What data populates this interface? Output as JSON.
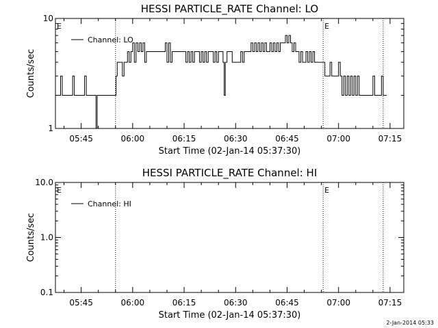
{
  "chart_data": [
    {
      "type": "line",
      "title": "HESSI PARTICLE_RATE Channel: LO",
      "xlabel": "Start Time (02-Jan-14 05:37:30)",
      "ylabel": "Counts/sec",
      "yscale": "log",
      "xlim": [
        "05:37:30",
        "07:19:00"
      ],
      "ylim": [
        1,
        10
      ],
      "x_ticks": [
        "05:45",
        "06:00",
        "06:15",
        "06:30",
        "06:45",
        "07:00",
        "07:15"
      ],
      "y_ticks": [
        "1",
        "10"
      ],
      "legend": {
        "position": "top-left",
        "entries": [
          "Channel: LO"
        ]
      },
      "event_markers": [
        {
          "time": "05:37:30",
          "label": "E"
        },
        {
          "time": "05:55:00",
          "label": ""
        },
        {
          "time": "06:55:30",
          "label": "E"
        },
        {
          "time": "07:13:00",
          "label": ""
        }
      ],
      "series": [
        {
          "name": "Channel: LO",
          "points": [
            [
              "05:37:30",
              2
            ],
            [
              "05:38:30",
              2
            ],
            [
              "05:39:00",
              3
            ],
            [
              "05:39:30",
              2
            ],
            [
              "05:42:00",
              2
            ],
            [
              "05:42:30",
              3
            ],
            [
              "05:43:00",
              2
            ],
            [
              "05:45:30",
              2
            ],
            [
              "05:46:00",
              3
            ],
            [
              "05:46:30",
              2
            ],
            [
              "05:49:00",
              2
            ],
            [
              "05:49:20",
              1
            ],
            [
              "05:49:40",
              2
            ],
            [
              "05:55:00",
              2
            ],
            [
              "05:55:10",
              3
            ],
            [
              "05:55:30",
              4
            ],
            [
              "05:56:30",
              4
            ],
            [
              "05:57:00",
              3
            ],
            [
              "05:57:30",
              4
            ],
            [
              "05:58:30",
              5
            ],
            [
              "05:59:00",
              4
            ],
            [
              "05:59:30",
              5
            ],
            [
              "06:00:00",
              6
            ],
            [
              "06:00:30",
              4
            ],
            [
              "06:01:00",
              6
            ],
            [
              "06:01:30",
              5
            ],
            [
              "06:02:00",
              6
            ],
            [
              "06:02:30",
              5
            ],
            [
              "06:03:00",
              6
            ],
            [
              "06:03:30",
              4
            ],
            [
              "06:04:00",
              5
            ],
            [
              "06:09:00",
              5
            ],
            [
              "06:09:30",
              6
            ],
            [
              "06:10:00",
              4
            ],
            [
              "06:10:30",
              6
            ],
            [
              "06:11:00",
              4
            ],
            [
              "06:11:30",
              5
            ],
            [
              "06:15:00",
              5
            ],
            [
              "06:15:30",
              4
            ],
            [
              "06:16:00",
              5
            ],
            [
              "06:16:30",
              4
            ],
            [
              "06:17:00",
              5
            ],
            [
              "06:17:30",
              4
            ],
            [
              "06:18:00",
              5
            ],
            [
              "06:19:00",
              5
            ],
            [
              "06:19:30",
              4
            ],
            [
              "06:20:00",
              5
            ],
            [
              "06:20:30",
              4
            ],
            [
              "06:21:00",
              5
            ],
            [
              "06:21:30",
              4
            ],
            [
              "06:22:00",
              5
            ],
            [
              "06:23:00",
              5
            ],
            [
              "06:23:30",
              4
            ],
            [
              "06:24:00",
              5
            ],
            [
              "06:24:30",
              4
            ],
            [
              "06:25:00",
              5
            ],
            [
              "06:26:00",
              5
            ],
            [
              "06:26:20",
              4
            ],
            [
              "06:26:40",
              2
            ],
            [
              "06:27:00",
              4
            ],
            [
              "06:27:30",
              5
            ],
            [
              "06:28:30",
              5
            ],
            [
              "06:29:00",
              4
            ],
            [
              "06:30:00",
              4
            ],
            [
              "06:31:00",
              4
            ],
            [
              "06:31:30",
              5
            ],
            [
              "06:32:00",
              4
            ],
            [
              "06:32:30",
              5
            ],
            [
              "06:34:00",
              5
            ],
            [
              "06:34:30",
              6
            ],
            [
              "06:35:00",
              5
            ],
            [
              "06:35:30",
              6
            ],
            [
              "06:36:00",
              5
            ],
            [
              "06:36:30",
              6
            ],
            [
              "06:37:00",
              5
            ],
            [
              "06:37:30",
              6
            ],
            [
              "06:38:00",
              5
            ],
            [
              "06:38:30",
              6
            ],
            [
              "06:39:00",
              5
            ],
            [
              "06:40:00",
              6
            ],
            [
              "06:40:30",
              5
            ],
            [
              "06:41:00",
              6
            ],
            [
              "06:41:30",
              5
            ],
            [
              "06:42:00",
              6
            ],
            [
              "06:42:30",
              5
            ],
            [
              "06:43:00",
              6
            ],
            [
              "06:44:00",
              6
            ],
            [
              "06:44:30",
              7
            ],
            [
              "06:45:00",
              6
            ],
            [
              "06:45:30",
              7
            ],
            [
              "06:46:00",
              6
            ],
            [
              "06:46:30",
              5
            ],
            [
              "06:47:00",
              6
            ],
            [
              "06:47:30",
              5
            ],
            [
              "06:48:00",
              5
            ],
            [
              "06:48:30",
              4
            ],
            [
              "06:49:00",
              5
            ],
            [
              "06:49:30",
              4
            ],
            [
              "06:50:00",
              4
            ],
            [
              "06:50:30",
              5
            ],
            [
              "06:51:00",
              4
            ],
            [
              "06:51:30",
              5
            ],
            [
              "06:52:00",
              4
            ],
            [
              "06:52:30",
              5
            ],
            [
              "06:53:00",
              4
            ],
            [
              "06:55:30",
              4
            ],
            [
              "06:56:00",
              3
            ],
            [
              "06:57:00",
              3
            ],
            [
              "06:57:30",
              4
            ],
            [
              "06:58:00",
              3
            ],
            [
              "06:59:30",
              3
            ],
            [
              "07:00:00",
              4
            ],
            [
              "07:00:30",
              3
            ],
            [
              "07:01:00",
              2
            ],
            [
              "07:01:30",
              3
            ],
            [
              "07:02:00",
              2
            ],
            [
              "07:02:30",
              3
            ],
            [
              "07:03:00",
              2
            ],
            [
              "07:03:30",
              3
            ],
            [
              "07:04:00",
              2
            ],
            [
              "07:04:30",
              3
            ],
            [
              "07:05:00",
              2
            ],
            [
              "07:05:30",
              3
            ],
            [
              "07:06:00",
              2
            ],
            [
              "07:09:30",
              2
            ],
            [
              "07:10:00",
              3
            ],
            [
              "07:10:30",
              2
            ],
            [
              "07:12:00",
              2
            ],
            [
              "07:12:30",
              3
            ],
            [
              "07:13:00",
              2
            ],
            [
              "07:14:00",
              2
            ]
          ]
        }
      ]
    },
    {
      "type": "line",
      "title": "HESSI PARTICLE_RATE Channel: HI",
      "xlabel": "Start Time (02-Jan-14 05:37:30)",
      "ylabel": "Counts/sec",
      "yscale": "log",
      "xlim": [
        "05:37:30",
        "07:19:00"
      ],
      "ylim": [
        0.1,
        10
      ],
      "x_ticks": [
        "05:45",
        "06:00",
        "06:15",
        "06:30",
        "06:45",
        "07:00",
        "07:15"
      ],
      "y_ticks": [
        "0.1",
        "1.0",
        "10.0"
      ],
      "legend": {
        "position": "top-left",
        "entries": [
          "Channel: HI"
        ]
      },
      "event_markers": [
        {
          "time": "05:37:30",
          "label": "E"
        },
        {
          "time": "05:55:00",
          "label": ""
        },
        {
          "time": "06:55:30",
          "label": "E"
        },
        {
          "time": "07:13:00",
          "label": ""
        }
      ],
      "series": [
        {
          "name": "Channel: HI",
          "points": []
        }
      ]
    }
  ],
  "footer": {
    "date": "2-Jan-2014 05:33"
  }
}
